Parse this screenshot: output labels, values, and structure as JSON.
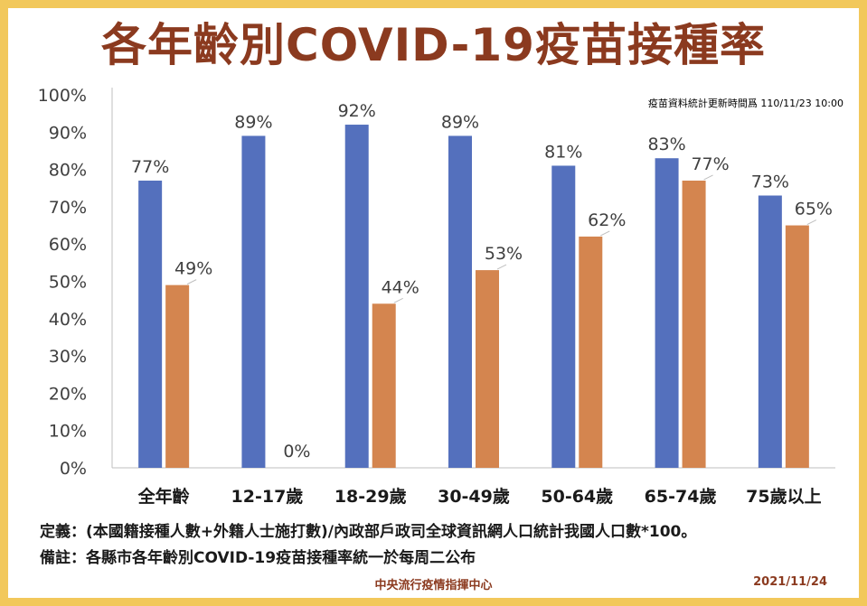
{
  "title": "各年齡別COVID-19疫苗接種率",
  "update_note": "疫苗資料統計更新時間爲 110/11/23 10:00",
  "definition": "定義：(本國籍接種人數+外籍人士施打數)/內政部戶政司全球資訊網人口統計我國人口數*100。",
  "remark": "備註：各縣市各年齡別COVID-19疫苗接種率統一於每周二公布",
  "organization": "中央流行疫情指揮中心",
  "date": "2021/11/24",
  "colors": {
    "series1": "#5470bd",
    "series2": "#d4854f",
    "title": "#8b3a1f",
    "border": "#f2c85b"
  },
  "chart_data": {
    "type": "bar",
    "title": "各年齡別COVID-19疫苗接種率",
    "categories": [
      "全年齡",
      "12-17歲",
      "18-29歲",
      "30-49歲",
      "50-64歲",
      "65-74歲",
      "75歲以上"
    ],
    "series": [
      {
        "values": [
          77,
          89,
          92,
          89,
          81,
          83,
          73
        ],
        "labels": [
          "77%",
          "89%",
          "92%",
          "89%",
          "81%",
          "83%",
          "73%"
        ]
      },
      {
        "values": [
          49,
          0,
          44,
          53,
          62,
          77,
          65
        ],
        "labels": [
          "49%",
          "0%",
          "44%",
          "53%",
          "62%",
          "77%",
          "65%"
        ]
      }
    ],
    "yticks": [
      "0%",
      "10%",
      "20%",
      "30%",
      "40%",
      "50%",
      "60%",
      "70%",
      "80%",
      "90%",
      "100%"
    ],
    "ylim": [
      0,
      100
    ],
    "grid": false,
    "legend": "none"
  }
}
